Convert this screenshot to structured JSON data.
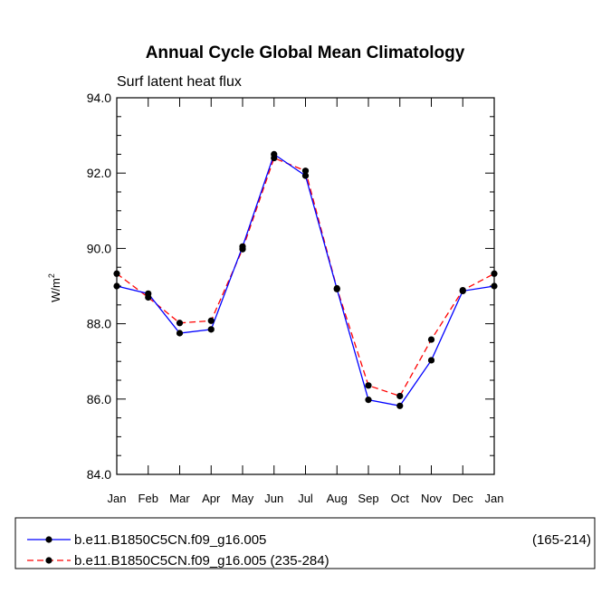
{
  "chart_data": {
    "type": "line",
    "title": "Annual Cycle Global Mean Climatology",
    "subtitle": "Surf latent heat flux",
    "ylabel": "W/m",
    "ylabel_superscript": "2",
    "xlabel": "",
    "ylim": [
      84.0,
      94.0
    ],
    "y_ticks": [
      84.0,
      86.0,
      88.0,
      90.0,
      92.0,
      94.0
    ],
    "y_tick_labels": [
      "84.0",
      "86.0",
      "88.0",
      "90.0",
      "92.0",
      "94.0"
    ],
    "categories": [
      "Jan",
      "Feb",
      "Mar",
      "Apr",
      "May",
      "Jun",
      "Jul",
      "Aug",
      "Sep",
      "Oct",
      "Nov",
      "Dec",
      "Jan"
    ],
    "series": [
      {
        "name": "b.e11.B1850C5CN.f09_g16.005",
        "range_label": "(165-214)",
        "color": "#0000ff",
        "dash": "solid",
        "values": [
          89.0,
          88.8,
          87.75,
          87.85,
          90.05,
          92.5,
          91.93,
          88.92,
          85.98,
          85.82,
          87.03,
          88.87,
          89.0
        ]
      },
      {
        "name": "b.e11.B1850C5CN.f09_g16.005 (235-284)",
        "range_label": "",
        "color": "#ff0000",
        "dash": "dashed",
        "values": [
          89.33,
          88.7,
          88.02,
          88.08,
          89.98,
          92.4,
          92.06,
          88.94,
          86.36,
          86.08,
          87.58,
          88.89,
          89.33
        ]
      }
    ],
    "legend_position": "bottom",
    "marker_color": "#000000"
  }
}
